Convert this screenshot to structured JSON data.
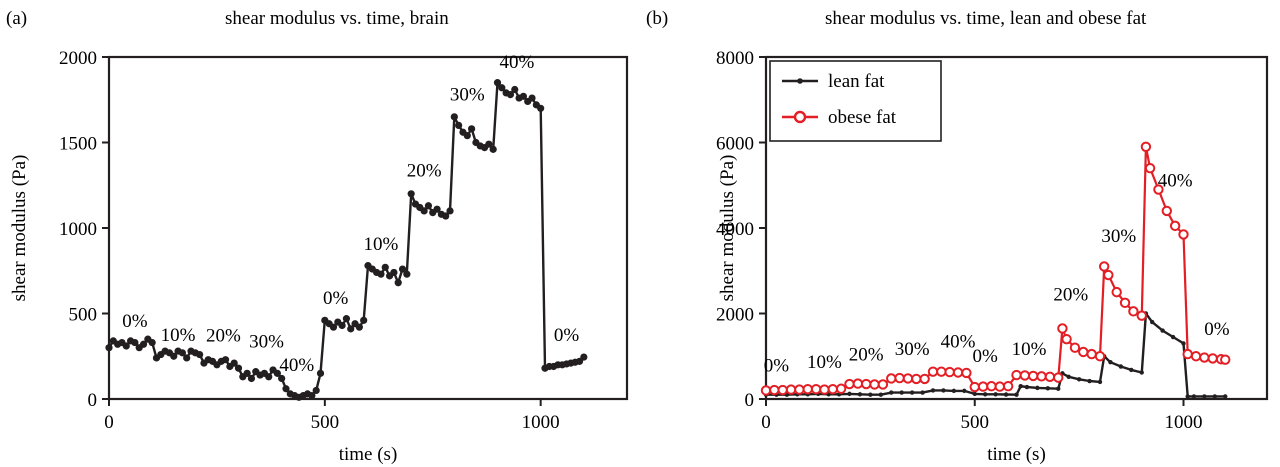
{
  "chart_data": [
    {
      "type": "line",
      "panel_label": "(a)",
      "title": "shear modulus vs. time, brain",
      "xlabel": "time (s)",
      "ylabel": "shear modulus (Pa)",
      "xlim": [
        0,
        1200
      ],
      "ylim": [
        0,
        2000
      ],
      "xticks": [
        0,
        500,
        1000
      ],
      "yticks": [
        0,
        500,
        1000,
        1500,
        2000
      ],
      "grid": false,
      "series": [
        {
          "color": "#231f20",
          "marker": "filled-circle",
          "x": [
            0,
            10,
            20,
            30,
            40,
            50,
            60,
            70,
            80,
            90,
            100,
            110,
            120,
            130,
            140,
            150,
            160,
            170,
            180,
            190,
            200,
            210,
            220,
            230,
            240,
            250,
            260,
            270,
            280,
            290,
            300,
            310,
            320,
            330,
            340,
            350,
            360,
            370,
            380,
            390,
            400,
            410,
            420,
            430,
            440,
            450,
            460,
            470,
            480,
            490,
            500,
            510,
            520,
            530,
            540,
            550,
            560,
            570,
            580,
            590,
            600,
            610,
            620,
            630,
            640,
            650,
            660,
            670,
            680,
            690,
            700,
            710,
            720,
            730,
            740,
            750,
            760,
            770,
            780,
            790,
            800,
            810,
            820,
            830,
            840,
            850,
            860,
            870,
            880,
            890,
            900,
            910,
            920,
            930,
            940,
            950,
            960,
            970,
            980,
            990,
            1000,
            1010,
            1020,
            1030,
            1040,
            1050,
            1060,
            1070,
            1080,
            1090,
            1100
          ],
          "y": [
            300,
            340,
            320,
            330,
            310,
            340,
            330,
            300,
            320,
            350,
            330,
            240,
            260,
            280,
            270,
            250,
            280,
            270,
            240,
            280,
            270,
            260,
            210,
            230,
            220,
            200,
            220,
            230,
            190,
            210,
            180,
            130,
            150,
            120,
            160,
            140,
            150,
            130,
            170,
            150,
            120,
            60,
            30,
            20,
            10,
            20,
            30,
            20,
            50,
            150,
            460,
            440,
            420,
            450,
            430,
            470,
            410,
            440,
            420,
            460,
            780,
            760,
            740,
            730,
            770,
            720,
            740,
            680,
            760,
            730,
            1200,
            1140,
            1120,
            1100,
            1130,
            1090,
            1110,
            1080,
            1070,
            1100,
            1650,
            1600,
            1560,
            1540,
            1580,
            1500,
            1480,
            1470,
            1490,
            1460,
            1850,
            1820,
            1790,
            1780,
            1810,
            1760,
            1770,
            1740,
            1760,
            1720,
            1700,
            180,
            190,
            190,
            200,
            200,
            205,
            210,
            215,
            220,
            245
          ]
        }
      ],
      "annotations": [
        {
          "text": "0%",
          "x": 60,
          "y": 420
        },
        {
          "text": "10%",
          "x": 160,
          "y": 340
        },
        {
          "text": "20%",
          "x": 265,
          "y": 335
        },
        {
          "text": "30%",
          "x": 365,
          "y": 300
        },
        {
          "text": "40%",
          "x": 435,
          "y": 165
        },
        {
          "text": "0%",
          "x": 525,
          "y": 555
        },
        {
          "text": "10%",
          "x": 630,
          "y": 870
        },
        {
          "text": "20%",
          "x": 730,
          "y": 1300
        },
        {
          "text": "30%",
          "x": 830,
          "y": 1745
        },
        {
          "text": "40%",
          "x": 945,
          "y": 1935
        },
        {
          "text": "0%",
          "x": 1060,
          "y": 340
        }
      ]
    },
    {
      "type": "line",
      "panel_label": "(b)",
      "title": "shear modulus vs. time, lean and obese fat",
      "xlabel": "time (s)",
      "ylabel": "shear modulus (Pa)",
      "xlim": [
        0,
        1200
      ],
      "ylim": [
        0,
        8000
      ],
      "xticks": [
        0,
        500,
        1000
      ],
      "yticks": [
        0,
        2000,
        4000,
        6000,
        8000
      ],
      "grid": false,
      "legend_position": "top-left",
      "series": [
        {
          "name": "lean fat",
          "color": "#231f20",
          "marker": "small-filled-circle",
          "x": [
            0,
            25,
            50,
            75,
            100,
            125,
            150,
            175,
            200,
            225,
            250,
            275,
            300,
            325,
            350,
            375,
            400,
            425,
            450,
            475,
            500,
            525,
            550,
            575,
            600,
            610,
            625,
            650,
            675,
            700,
            710,
            725,
            750,
            775,
            800,
            810,
            825,
            850,
            875,
            900,
            910,
            925,
            950,
            975,
            1000,
            1010,
            1025,
            1050,
            1075,
            1100
          ],
          "y": [
            100,
            100,
            100,
            110,
            110,
            120,
            110,
            110,
            120,
            110,
            100,
            100,
            150,
            150,
            150,
            150,
            200,
            200,
            190,
            190,
            120,
            110,
            110,
            105,
            100,
            300,
            280,
            260,
            250,
            240,
            600,
            520,
            460,
            420,
            400,
            1000,
            860,
            760,
            680,
            620,
            2000,
            1800,
            1600,
            1450,
            1300,
            60,
            60,
            60,
            60,
            60
          ]
        },
        {
          "name": "obese fat",
          "color": "#e31e24",
          "marker": "open-circle",
          "x": [
            0,
            20,
            40,
            60,
            80,
            100,
            120,
            140,
            160,
            180,
            200,
            220,
            240,
            260,
            280,
            300,
            320,
            340,
            360,
            380,
            400,
            420,
            440,
            460,
            480,
            500,
            520,
            540,
            560,
            580,
            600,
            620,
            640,
            660,
            680,
            700,
            710,
            720,
            740,
            760,
            780,
            800,
            810,
            820,
            840,
            860,
            880,
            900,
            910,
            920,
            940,
            960,
            980,
            1000,
            1010,
            1030,
            1050,
            1070,
            1090,
            1100
          ],
          "y": [
            200,
            210,
            210,
            220,
            220,
            230,
            230,
            220,
            230,
            240,
            350,
            360,
            350,
            340,
            340,
            480,
            490,
            480,
            470,
            470,
            640,
            640,
            630,
            620,
            610,
            280,
            290,
            300,
            290,
            300,
            560,
            550,
            540,
            530,
            520,
            500,
            1650,
            1400,
            1200,
            1100,
            1050,
            1000,
            3100,
            2900,
            2500,
            2250,
            2050,
            1950,
            5900,
            5400,
            4900,
            4400,
            4050,
            3850,
            1050,
            1000,
            970,
            950,
            930,
            920
          ]
        }
      ],
      "annotations": [
        {
          "text": "0%",
          "x": 25,
          "y": 640
        },
        {
          "text": "10%",
          "x": 140,
          "y": 720
        },
        {
          "text": "20%",
          "x": 240,
          "y": 900
        },
        {
          "text": "30%",
          "x": 350,
          "y": 1030
        },
        {
          "text": "40%",
          "x": 460,
          "y": 1200
        },
        {
          "text": "0%",
          "x": 525,
          "y": 870
        },
        {
          "text": "10%",
          "x": 630,
          "y": 1030
        },
        {
          "text": "20%",
          "x": 730,
          "y": 2300
        },
        {
          "text": "30%",
          "x": 845,
          "y": 3670
        },
        {
          "text": "40%",
          "x": 980,
          "y": 4970
        },
        {
          "text": "0%",
          "x": 1080,
          "y": 1500
        }
      ]
    }
  ]
}
